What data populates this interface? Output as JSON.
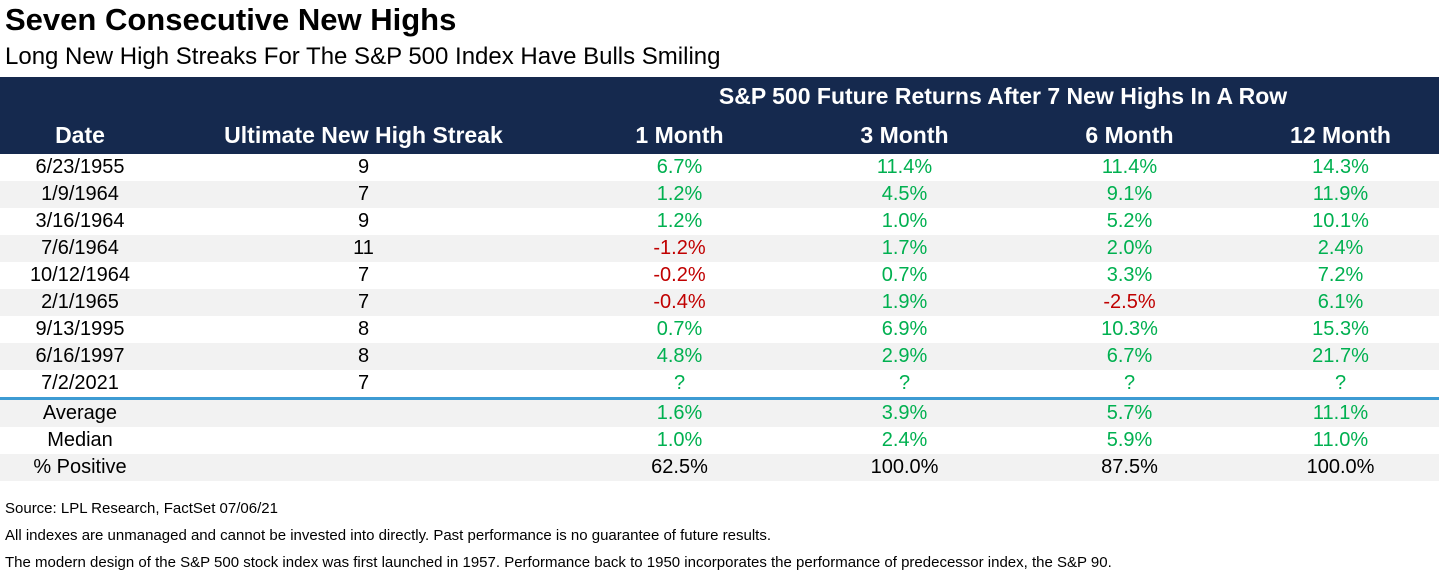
{
  "title": "Seven Consecutive New Highs",
  "subtitle": "Long New High Streaks For The S&P 500 Index Have Bulls Smiling",
  "table": {
    "group_header": "S&P 500 Future Returns After 7 New Highs In A Row",
    "columns": [
      "Date",
      "Ultimate New High Streak",
      "1 Month",
      "3 Month",
      "6 Month",
      "12 Month"
    ],
    "rows": [
      {
        "date": "6/23/1955",
        "streak": "9",
        "returns": [
          "6.7%",
          "11.4%",
          "11.4%",
          "14.3%"
        ]
      },
      {
        "date": "1/9/1964",
        "streak": "7",
        "returns": [
          "1.2%",
          "4.5%",
          "9.1%",
          "11.9%"
        ]
      },
      {
        "date": "3/16/1964",
        "streak": "9",
        "returns": [
          "1.2%",
          "1.0%",
          "5.2%",
          "10.1%"
        ]
      },
      {
        "date": "7/6/1964",
        "streak": "11",
        "returns": [
          "-1.2%",
          "1.7%",
          "2.0%",
          "2.4%"
        ]
      },
      {
        "date": "10/12/1964",
        "streak": "7",
        "returns": [
          "-0.2%",
          "0.7%",
          "3.3%",
          "7.2%"
        ]
      },
      {
        "date": "2/1/1965",
        "streak": "7",
        "returns": [
          "-0.4%",
          "1.9%",
          "-2.5%",
          "6.1%"
        ]
      },
      {
        "date": "9/13/1995",
        "streak": "8",
        "returns": [
          "0.7%",
          "6.9%",
          "10.3%",
          "15.3%"
        ]
      },
      {
        "date": "6/16/1997",
        "streak": "8",
        "returns": [
          "4.8%",
          "2.9%",
          "6.7%",
          "21.7%"
        ]
      },
      {
        "date": "7/2/2021",
        "streak": "7",
        "returns": [
          "?",
          "?",
          "?",
          "?"
        ]
      }
    ],
    "summary_rows": [
      {
        "label": "Average",
        "returns": [
          "1.6%",
          "3.9%",
          "5.7%",
          "11.1%"
        ],
        "tone": "pos"
      },
      {
        "label": "Median",
        "returns": [
          "1.0%",
          "2.4%",
          "5.9%",
          "11.0%"
        ],
        "tone": "pos"
      },
      {
        "label": "% Positive",
        "returns": [
          "62.5%",
          "100.0%",
          "87.5%",
          "100.0%"
        ],
        "tone": "neutral"
      }
    ]
  },
  "footnotes": [
    "Source: LPL Research, FactSet 07/06/21",
    "All indexes are unmanaged and cannot be invested into directly. Past performance is no guarantee of future results.",
    "The modern design of the S&P 500 stock index was first launched in 1957. Performance back to 1950 incorporates the performance of predecessor index, the S&P 90."
  ],
  "colors": {
    "header_navy": "#15294E",
    "positive_green": "#00B050",
    "negative_red": "#C00000",
    "divider_blue": "#3D9BD3",
    "stripe_gray": "#F2F2F2"
  },
  "chart_data": {
    "type": "table",
    "title": "Seven Consecutive New Highs",
    "subtitle": "Long New High Streaks For The S&P 500 Index Have Bulls Smiling",
    "group_header": "S&P 500 Future Returns After 7 New Highs In A Row",
    "columns": [
      "Date",
      "Ultimate New High Streak",
      "1 Month",
      "3 Month",
      "6 Month",
      "12 Month"
    ],
    "rows": [
      [
        "6/23/1955",
        9,
        "6.7%",
        "11.4%",
        "11.4%",
        "14.3%"
      ],
      [
        "1/9/1964",
        7,
        "1.2%",
        "4.5%",
        "9.1%",
        "11.9%"
      ],
      [
        "3/16/1964",
        9,
        "1.2%",
        "1.0%",
        "5.2%",
        "10.1%"
      ],
      [
        "7/6/1964",
        11,
        "-1.2%",
        "1.7%",
        "2.0%",
        "2.4%"
      ],
      [
        "10/12/1964",
        7,
        "-0.2%",
        "0.7%",
        "3.3%",
        "7.2%"
      ],
      [
        "2/1/1965",
        7,
        "-0.4%",
        "1.9%",
        "-2.5%",
        "6.1%"
      ],
      [
        "9/13/1995",
        8,
        "0.7%",
        "6.9%",
        "10.3%",
        "15.3%"
      ],
      [
        "6/16/1997",
        8,
        "4.8%",
        "2.9%",
        "6.7%",
        "21.7%"
      ],
      [
        "7/2/2021",
        7,
        "?",
        "?",
        "?",
        "?"
      ]
    ],
    "summary": [
      [
        "Average",
        "",
        "1.6%",
        "3.9%",
        "5.7%",
        "11.1%"
      ],
      [
        "Median",
        "",
        "1.0%",
        "2.4%",
        "5.9%",
        "11.0%"
      ],
      [
        "% Positive",
        "",
        "62.5%",
        "100.0%",
        "87.5%",
        "100.0%"
      ]
    ]
  }
}
